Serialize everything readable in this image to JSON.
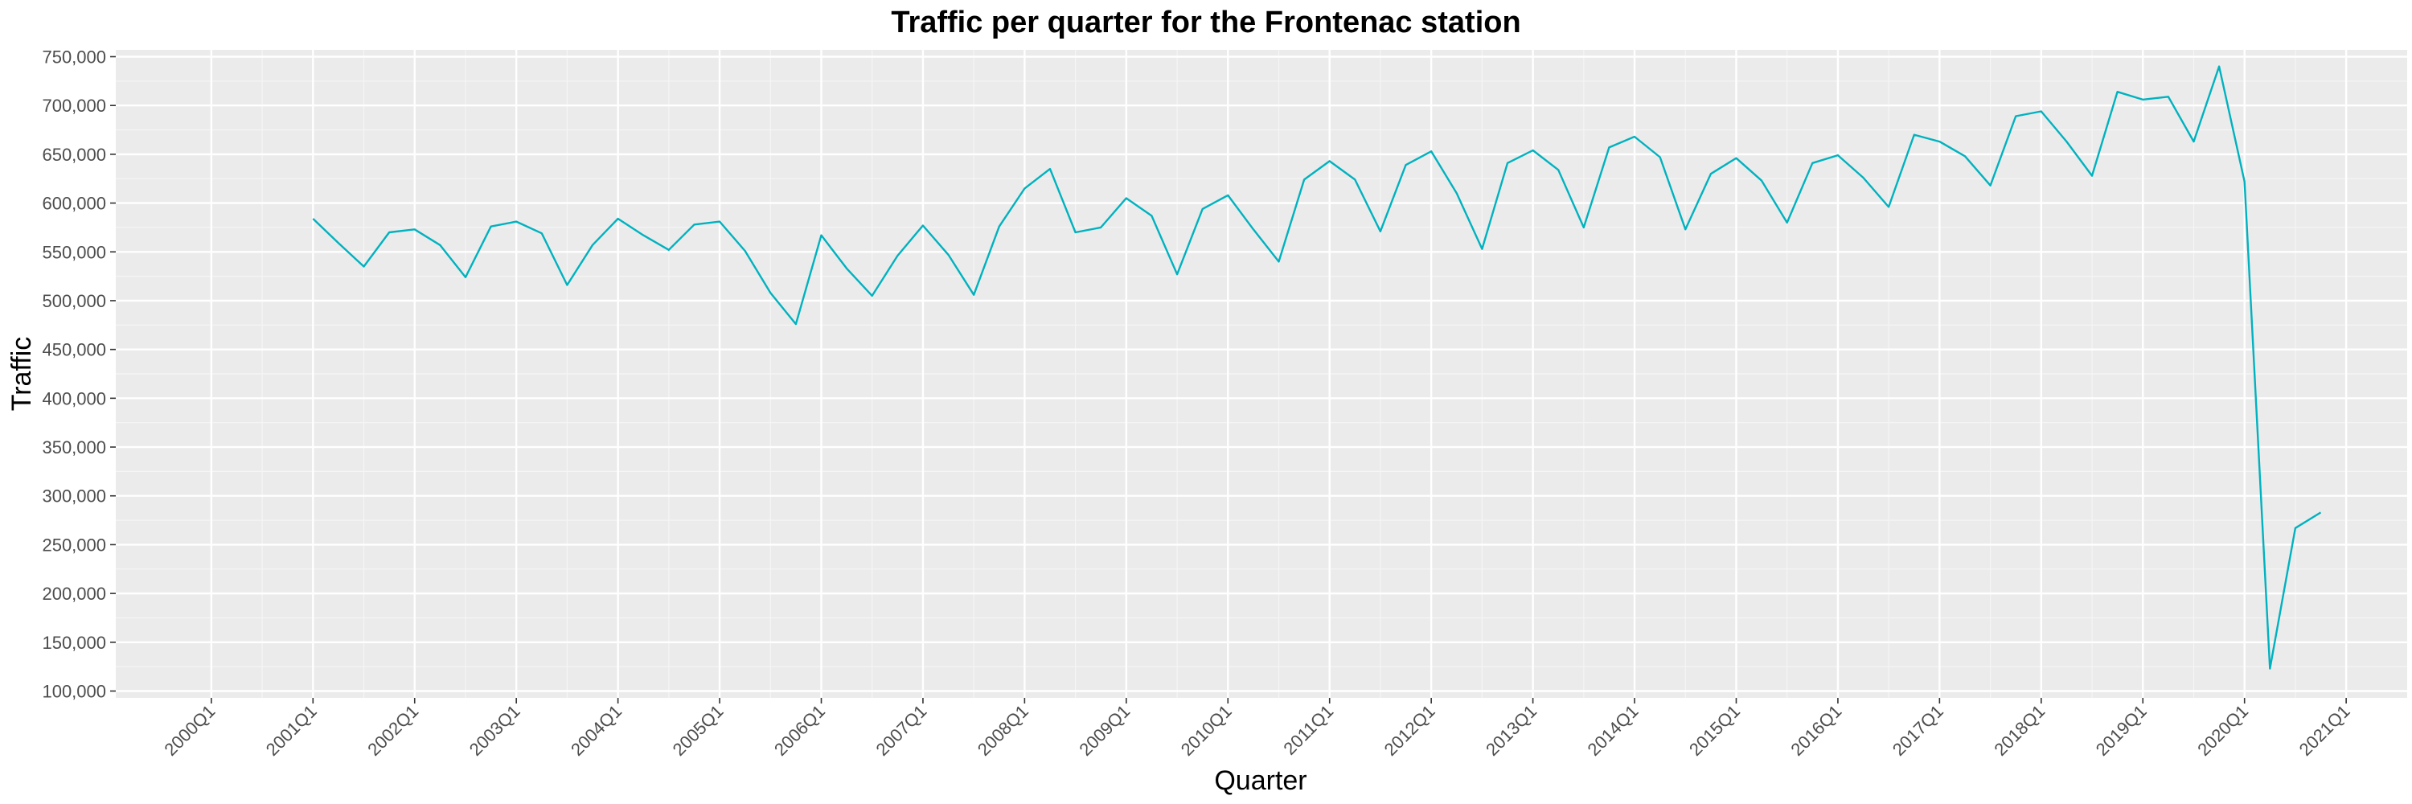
{
  "chart_data": {
    "type": "line",
    "title": "Traffic per quarter for the Frontenac station",
    "xlabel": "Quarter",
    "ylabel": "Traffic",
    "ylim": [
      93000,
      757000
    ],
    "grid": true,
    "legend": "none",
    "line_color": "#00B2BF",
    "panel_color": "#EBEBEB",
    "y_ticks": [
      {
        "value": 100000,
        "label": "100,000"
      },
      {
        "value": 150000,
        "label": "150,000"
      },
      {
        "value": 200000,
        "label": "200,000"
      },
      {
        "value": 250000,
        "label": "250,000"
      },
      {
        "value": 300000,
        "label": "300,000"
      },
      {
        "value": 350000,
        "label": "350,000"
      },
      {
        "value": 400000,
        "label": "400,000"
      },
      {
        "value": 450000,
        "label": "450,000"
      },
      {
        "value": 500000,
        "label": "500,000"
      },
      {
        "value": 550000,
        "label": "550,000"
      },
      {
        "value": 600000,
        "label": "600,000"
      },
      {
        "value": 650000,
        "label": "650,000"
      },
      {
        "value": 700000,
        "label": "700,000"
      },
      {
        "value": 750000,
        "label": "750,000"
      }
    ],
    "x_ticks": [
      "2000Q1",
      "2001Q1",
      "2002Q1",
      "2003Q1",
      "2004Q1",
      "2005Q1",
      "2006Q1",
      "2007Q1",
      "2008Q1",
      "2009Q1",
      "2010Q1",
      "2011Q1",
      "2012Q1",
      "2013Q1",
      "2014Q1",
      "2015Q1",
      "2016Q1",
      "2017Q1",
      "2018Q1",
      "2019Q1",
      "2020Q1",
      "2021Q1"
    ],
    "x": [
      "2001Q1",
      "2001Q2",
      "2001Q3",
      "2001Q4",
      "2002Q1",
      "2002Q2",
      "2002Q3",
      "2002Q4",
      "2003Q1",
      "2003Q2",
      "2003Q3",
      "2003Q4",
      "2004Q1",
      "2004Q2",
      "2004Q3",
      "2004Q4",
      "2005Q1",
      "2005Q2",
      "2005Q3",
      "2005Q4",
      "2006Q1",
      "2006Q2",
      "2006Q3",
      "2006Q4",
      "2007Q1",
      "2007Q2",
      "2007Q3",
      "2007Q4",
      "2008Q1",
      "2008Q2",
      "2008Q3",
      "2008Q4",
      "2009Q1",
      "2009Q2",
      "2009Q3",
      "2009Q4",
      "2010Q1",
      "2010Q2",
      "2010Q3",
      "2010Q4",
      "2011Q1",
      "2011Q2",
      "2011Q3",
      "2011Q4",
      "2012Q1",
      "2012Q2",
      "2012Q3",
      "2012Q4",
      "2013Q1",
      "2013Q2",
      "2013Q3",
      "2013Q4",
      "2014Q1",
      "2014Q2",
      "2014Q3",
      "2014Q4",
      "2015Q1",
      "2015Q2",
      "2015Q3",
      "2015Q4",
      "2016Q1",
      "2016Q2",
      "2016Q3",
      "2016Q4",
      "2017Q1",
      "2017Q2",
      "2017Q3",
      "2017Q4",
      "2018Q1",
      "2018Q2",
      "2018Q3",
      "2018Q4",
      "2019Q1",
      "2019Q2",
      "2019Q3",
      "2019Q4",
      "2020Q1",
      "2020Q2",
      "2020Q3",
      "2020Q4"
    ],
    "values": [
      584000,
      559000,
      535000,
      570000,
      573000,
      557000,
      524000,
      576000,
      581000,
      569000,
      516000,
      557000,
      584000,
      567000,
      552000,
      578000,
      581000,
      551000,
      508000,
      476000,
      567000,
      533000,
      505000,
      546000,
      577000,
      547000,
      506000,
      576000,
      615000,
      635000,
      570000,
      575000,
      605000,
      587000,
      527000,
      594000,
      608000,
      573000,
      540000,
      624000,
      643000,
      624000,
      571000,
      639000,
      653000,
      610000,
      553000,
      641000,
      654000,
      634000,
      575000,
      657000,
      668000,
      647000,
      573000,
      630000,
      646000,
      623000,
      580000,
      641000,
      649000,
      626000,
      596000,
      670000,
      663000,
      648000,
      618000,
      689000,
      694000,
      663000,
      628000,
      714000,
      706000,
      709000,
      663000,
      740000,
      622000,
      123000,
      267000,
      283000
    ]
  }
}
